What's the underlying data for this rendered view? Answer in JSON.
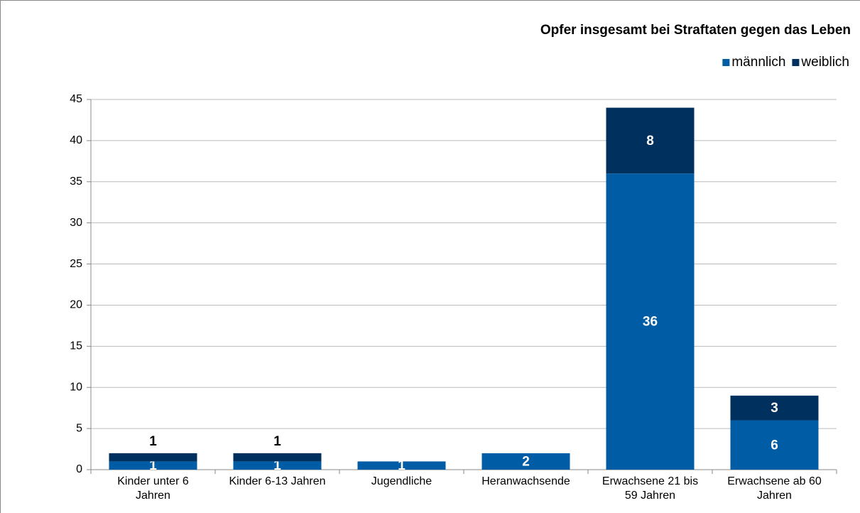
{
  "chart_data": {
    "type": "stacked_bar",
    "title": "Opfer insgesamt bei Straftaten gegen das Leben",
    "categories": [
      "Kinder unter 6 Jahren",
      "Kinder 6-13 Jahren",
      "Jugendliche",
      "Heranwachsende",
      "Erwachsene 21 bis 59 Jahren",
      "Erwachsene ab 60 Jahren"
    ],
    "series": [
      {
        "name": "männlich",
        "color": "#005ca4",
        "values": [
          1,
          1,
          1,
          2,
          36,
          6
        ]
      },
      {
        "name": "weiblich",
        "color": "#00305e",
        "values": [
          1,
          1,
          null,
          null,
          8,
          3
        ]
      }
    ],
    "ylim": [
      0,
      45
    ],
    "yticks": [
      0,
      5,
      10,
      15,
      20,
      25,
      30,
      35,
      40,
      45
    ],
    "grid": true,
    "legend": "top-right"
  }
}
